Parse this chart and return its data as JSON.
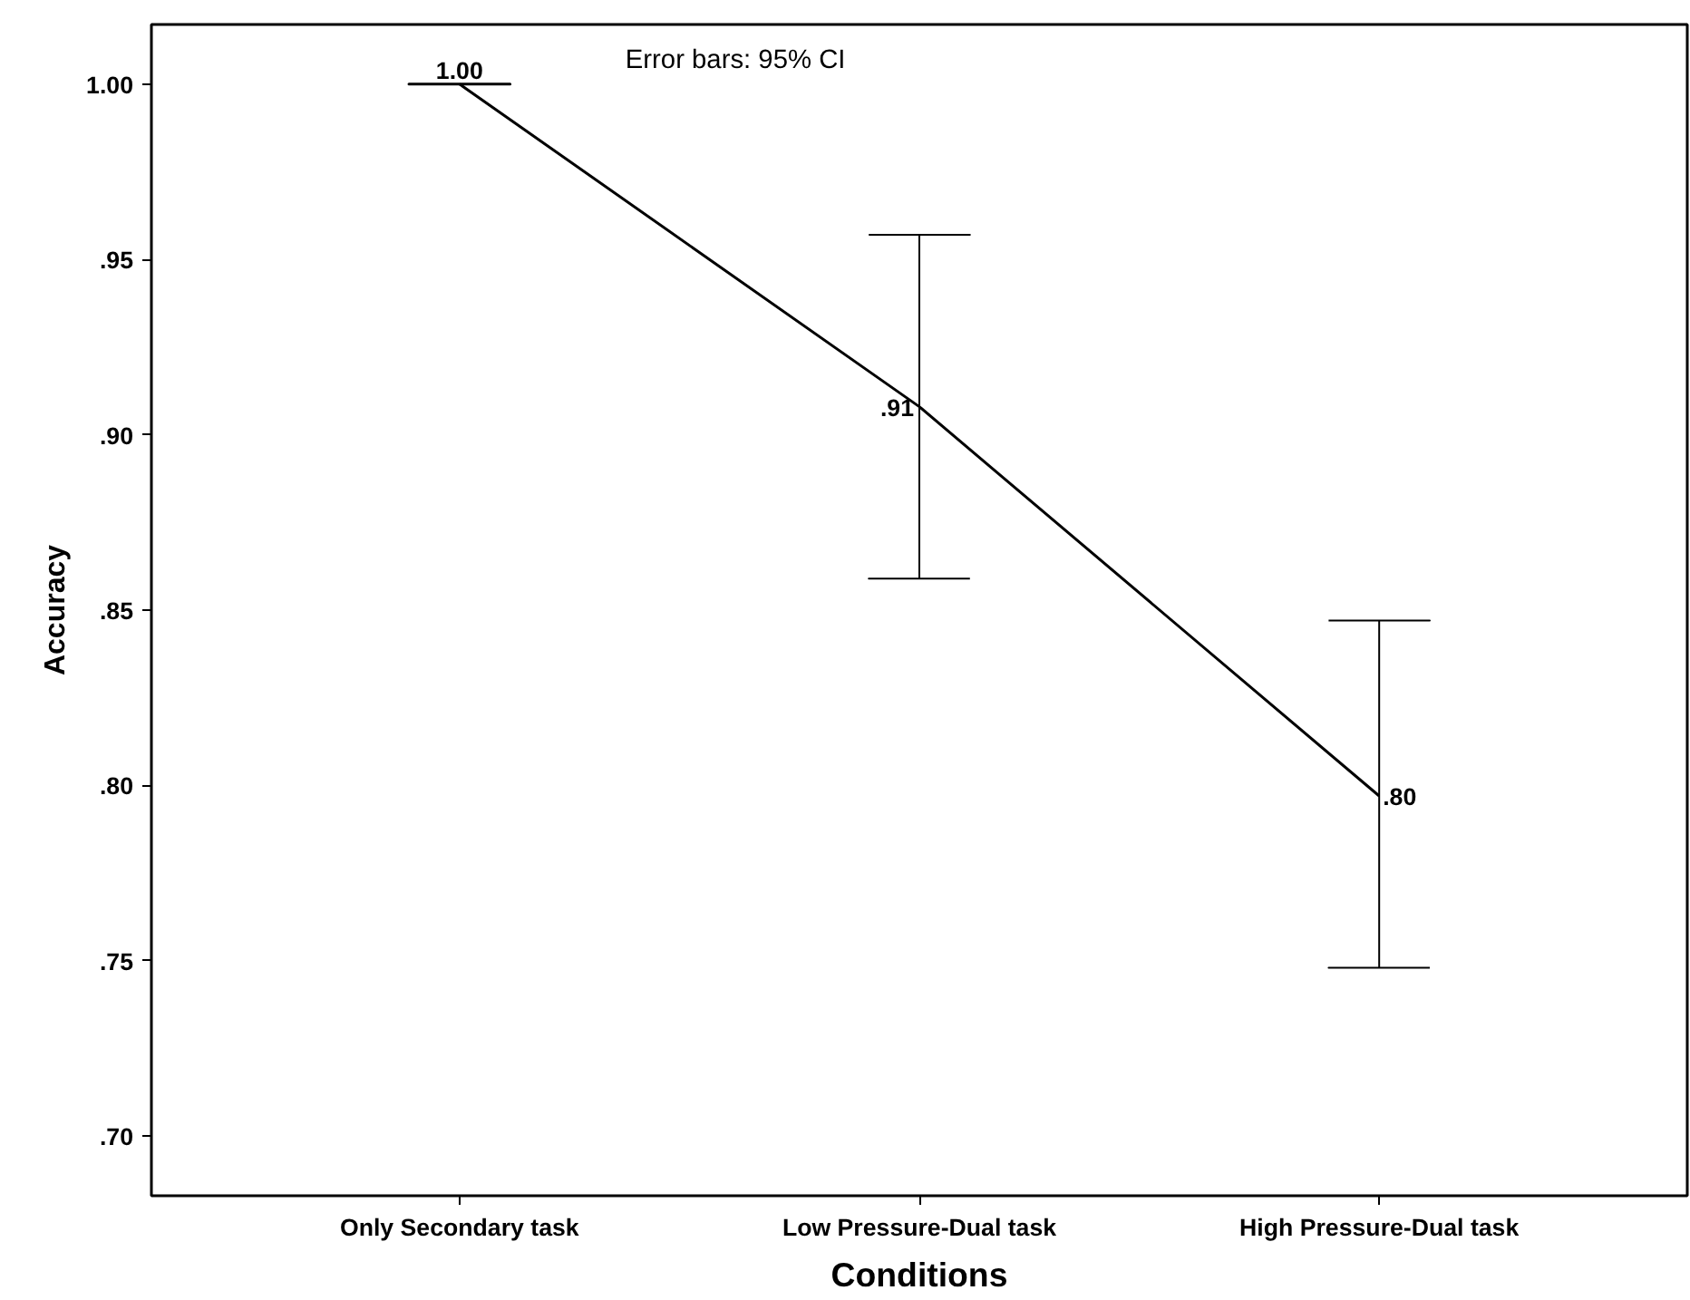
{
  "chart_data": {
    "type": "line",
    "xlabel": "Conditions",
    "ylabel": "Accuracy",
    "categories": [
      "Only Secondary task",
      "Low Pressure-Dual task",
      "High Pressure-Dual task"
    ],
    "series": [
      {
        "color": "#000000",
        "values": [
          1.0,
          0.908,
          0.797
        ],
        "errors": [
          [
            1.0,
            1.0
          ],
          [
            0.859,
            0.957
          ],
          [
            0.748,
            0.847
          ]
        ],
        "value_labels": [
          "1.00",
          ".91",
          ".80"
        ]
      }
    ],
    "annotations": [
      "Error bars: 95% CI"
    ],
    "ylim": [
      0.683,
      1.017
    ],
    "yticks": [
      {
        "value": 0.7,
        "label": ".70"
      },
      {
        "value": 0.75,
        "label": ".75"
      },
      {
        "value": 0.8,
        "label": ".80"
      },
      {
        "value": 0.85,
        "label": ".85"
      },
      {
        "value": 0.9,
        "label": ".90"
      },
      {
        "value": 0.95,
        "label": ".95"
      },
      {
        "value": 1.0,
        "label": "1.00"
      }
    ],
    "grid": false,
    "marker": "none",
    "line_style": "solid"
  }
}
